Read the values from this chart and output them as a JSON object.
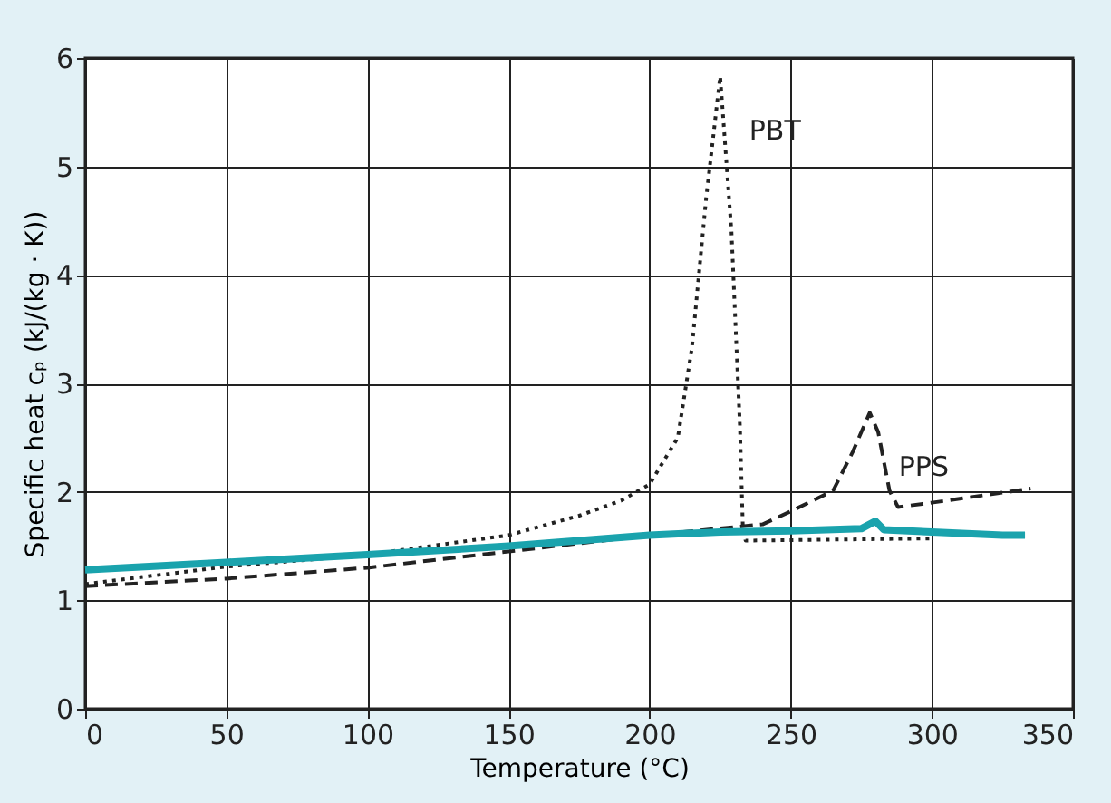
{
  "chart_data": {
    "type": "line",
    "xlabel": "Temperature (°C)",
    "ylabel": "Specific heat cₚ (kJ/(kg · K))",
    "xlim": [
      0,
      350
    ],
    "xticks": [
      0,
      50,
      100,
      150,
      200,
      250,
      300,
      350
    ],
    "ylim": [
      0,
      6
    ],
    "yticks": [
      0,
      1,
      2,
      3,
      4,
      5,
      6
    ],
    "grid": true,
    "marker": "none",
    "series": [
      {
        "name": "PBT",
        "color": "#222222",
        "line_style": "dotted",
        "x": [
          0,
          50,
          100,
          150,
          175,
          190,
          200,
          210,
          215,
          220,
          225,
          229,
          232,
          233,
          234,
          300
        ],
        "values": [
          1.15,
          1.31,
          1.42,
          1.6,
          1.78,
          1.92,
          2.07,
          2.5,
          3.33,
          4.7,
          5.83,
          4.4,
          2.6,
          1.7,
          1.55,
          1.57
        ]
      },
      {
        "name": "PPS",
        "color": "#222222",
        "line_style": "dashed",
        "x": [
          0,
          50,
          100,
          150,
          200,
          240,
          250,
          265,
          272,
          278,
          281,
          285,
          288,
          300,
          335
        ],
        "values": [
          1.13,
          1.2,
          1.3,
          1.45,
          1.6,
          1.7,
          1.82,
          2.01,
          2.37,
          2.73,
          2.55,
          2.01,
          1.86,
          1.9,
          2.03
        ]
      },
      {
        "color": "#1aa3ad",
        "line_style": "solid",
        "x": [
          0,
          50,
          100,
          150,
          200,
          225,
          250,
          275,
          280,
          283,
          300,
          325,
          333
        ],
        "values": [
          1.28,
          1.35,
          1.42,
          1.5,
          1.6,
          1.63,
          1.64,
          1.66,
          1.73,
          1.65,
          1.63,
          1.6,
          1.6
        ]
      }
    ]
  }
}
